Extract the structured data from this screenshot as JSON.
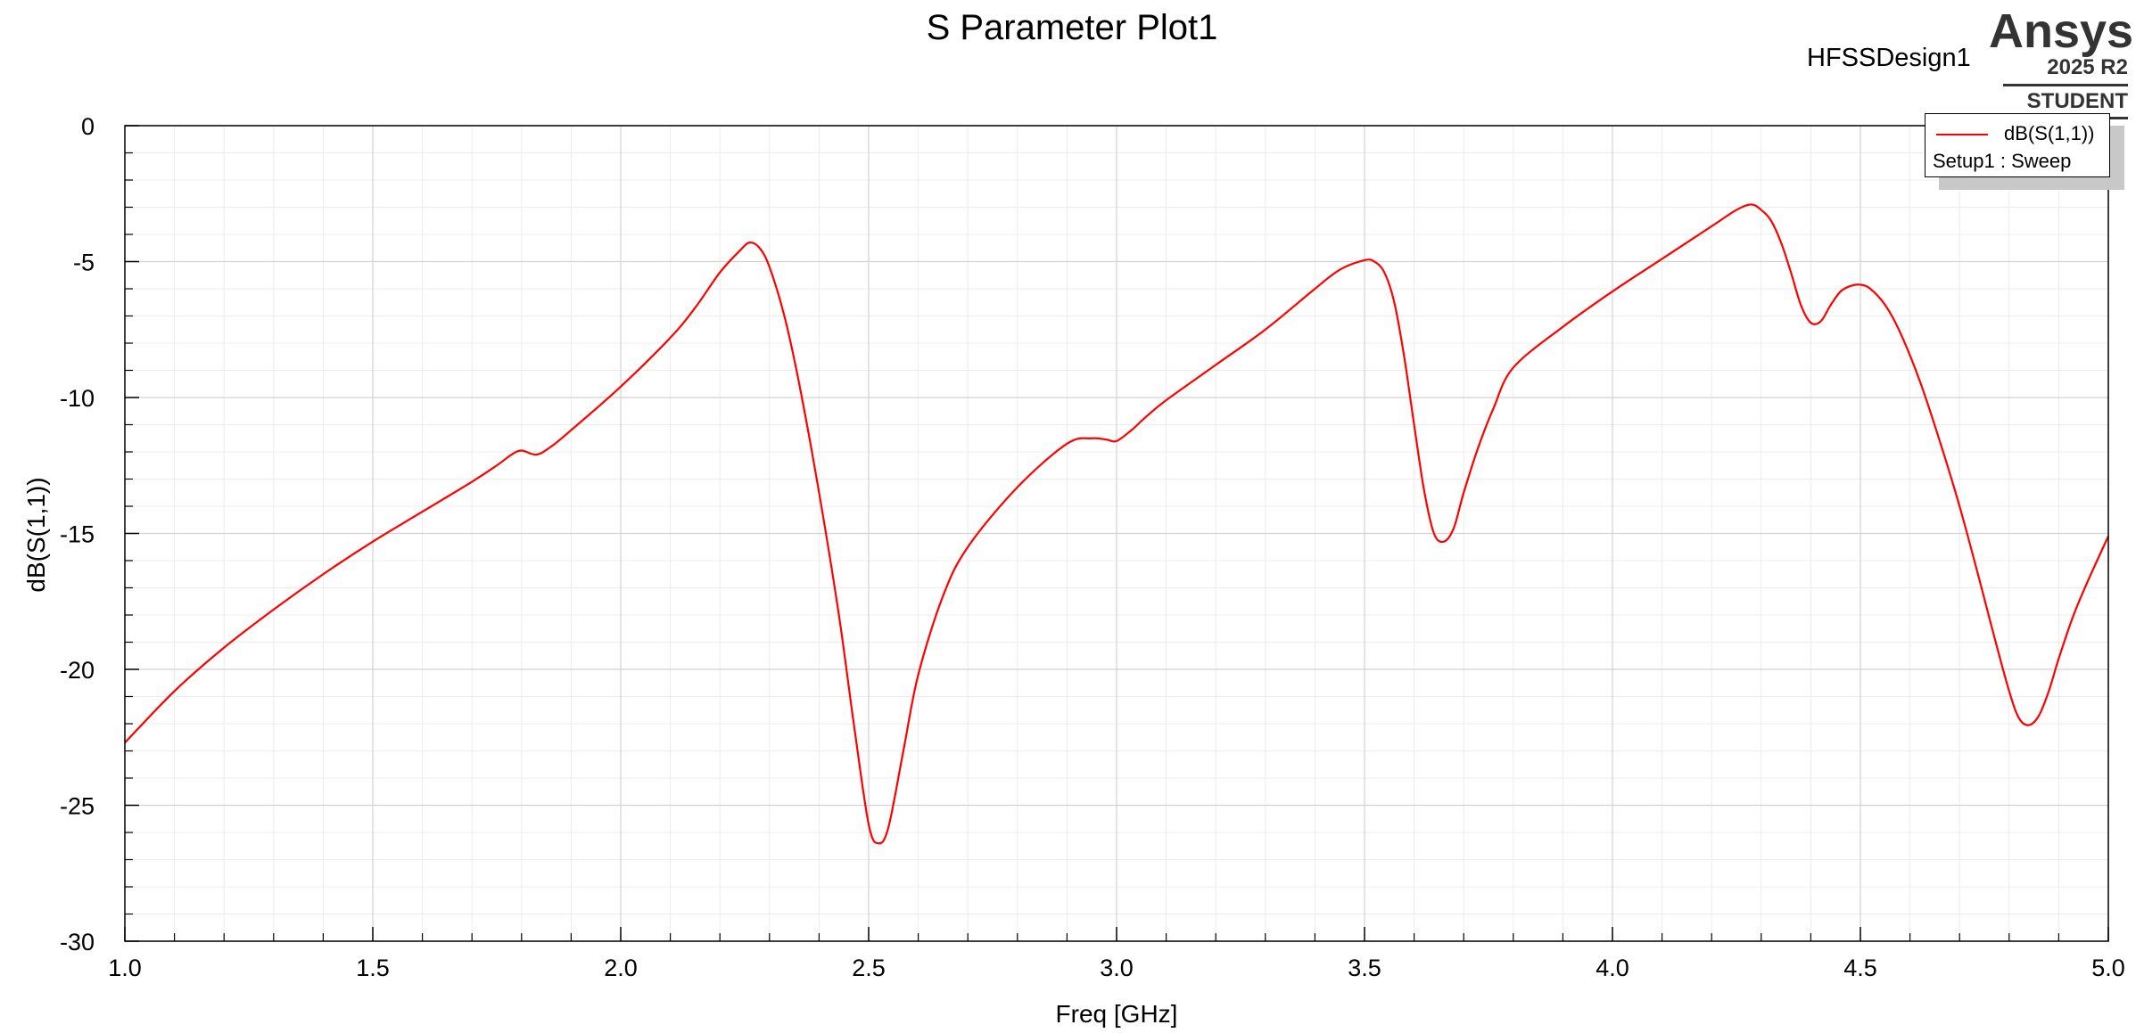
{
  "header": {
    "title": "S Parameter Plot1",
    "design_name": "HFSSDesign1"
  },
  "brand": {
    "name": "Ansys",
    "version": "2025 R2",
    "edition": "STUDENT"
  },
  "legend": {
    "series_label": "dB(S(1,1))",
    "setup_label": "Setup1 : Sweep"
  },
  "colors": {
    "series": "#ff0000",
    "major_grid": "#d2d2d2",
    "minor_grid": "#ececec",
    "axis": "#000000"
  },
  "chart_data": {
    "type": "line",
    "title": "S Parameter Plot1",
    "xlabel": "Freq [GHz]",
    "ylabel": "dB(S(1,1))",
    "xlim": [
      1.0,
      5.0
    ],
    "ylim": [
      -30,
      0
    ],
    "x_ticks": [
      "1.0",
      "1.5",
      "2.0",
      "2.5",
      "3.0",
      "3.5",
      "4.0",
      "4.5",
      "5.0"
    ],
    "y_ticks": [
      "0",
      "-5",
      "-10",
      "-15",
      "-20",
      "-25",
      "-30"
    ],
    "grid": true,
    "legend_position": "top-right",
    "series": [
      {
        "name": "dB(S(1,1))",
        "color": "#ff0000",
        "x": [
          1.0,
          1.1,
          1.2,
          1.3,
          1.4,
          1.5,
          1.6,
          1.7,
          1.75,
          1.78,
          1.8,
          1.83,
          1.86,
          1.9,
          2.0,
          2.1,
          2.15,
          2.2,
          2.24,
          2.26,
          2.28,
          2.3,
          2.33,
          2.36,
          2.4,
          2.44,
          2.47,
          2.5,
          2.52,
          2.54,
          2.57,
          2.6,
          2.65,
          2.7,
          2.8,
          2.9,
          2.95,
          2.98,
          3.0,
          3.03,
          3.06,
          3.1,
          3.2,
          3.3,
          3.4,
          3.45,
          3.5,
          3.52,
          3.54,
          3.56,
          3.58,
          3.6,
          3.62,
          3.64,
          3.66,
          3.68,
          3.7,
          3.73,
          3.76,
          3.8,
          3.9,
          4.0,
          4.1,
          4.2,
          4.25,
          4.28,
          4.3,
          4.32,
          4.34,
          4.36,
          4.38,
          4.4,
          4.42,
          4.44,
          4.46,
          4.48,
          4.5,
          4.52,
          4.55,
          4.58,
          4.62,
          4.66,
          4.7,
          4.74,
          4.77,
          4.8,
          4.82,
          4.84,
          4.86,
          4.88,
          4.9,
          4.93,
          4.96,
          5.0
        ],
        "values": [
          -22.7,
          -20.8,
          -19.2,
          -17.8,
          -16.5,
          -15.3,
          -14.2,
          -13.1,
          -12.5,
          -12.1,
          -11.95,
          -12.1,
          -11.8,
          -11.2,
          -9.6,
          -7.8,
          -6.7,
          -5.4,
          -4.6,
          -4.3,
          -4.5,
          -5.2,
          -7.0,
          -9.5,
          -13.5,
          -18.0,
          -22.0,
          -25.7,
          -26.4,
          -25.8,
          -23.0,
          -20.2,
          -17.3,
          -15.5,
          -13.3,
          -11.7,
          -11.5,
          -11.55,
          -11.6,
          -11.2,
          -10.7,
          -10.1,
          -8.8,
          -7.5,
          -6.0,
          -5.3,
          -4.95,
          -5.0,
          -5.4,
          -6.5,
          -8.5,
          -11.0,
          -13.4,
          -15.0,
          -15.3,
          -14.8,
          -13.5,
          -11.8,
          -10.4,
          -8.9,
          -7.4,
          -6.1,
          -4.9,
          -3.7,
          -3.1,
          -2.9,
          -3.1,
          -3.5,
          -4.3,
          -5.4,
          -6.6,
          -7.25,
          -7.2,
          -6.6,
          -6.1,
          -5.9,
          -5.85,
          -6.0,
          -6.6,
          -7.6,
          -9.4,
          -11.6,
          -14.0,
          -16.7,
          -18.8,
          -20.8,
          -21.8,
          -22.05,
          -21.7,
          -20.8,
          -19.6,
          -18.0,
          -16.7,
          -15.1
        ]
      }
    ]
  }
}
